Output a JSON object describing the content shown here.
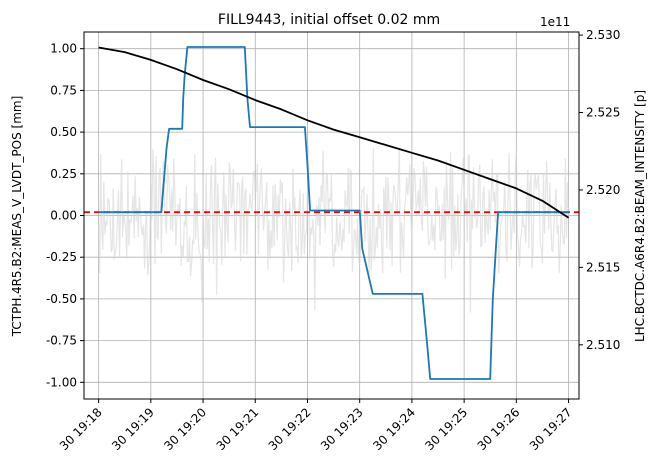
{
  "chart_data": {
    "type": "line",
    "title": "FILL9443, initial offset 0.02 mm",
    "ylabel_left": "TCTPH.4R5.B2:MEAS_V_LVDT_POS [mm]",
    "ylabel_right": "LHC.BCTDC.A6R4.B2:BEAM_INTENSITY [p]",
    "right_axis_offset_label": "1e11",
    "x_ticks": [
      "30 19:18",
      "30 19:19",
      "30 19:20",
      "30 19:21",
      "30 19:22",
      "30 19:23",
      "30 19:24",
      "30 19:25",
      "30 19:26",
      "30 19:27"
    ],
    "xlim": [
      -0.28,
      9.2
    ],
    "ylim_left": [
      -1.1,
      1.1
    ],
    "ylim_right": [
      2.5065,
      2.5302
    ],
    "yticks_left": [
      "-1.00",
      "-0.75",
      "-0.50",
      "-0.25",
      "0.00",
      "0.25",
      "0.50",
      "0.75",
      "1.00"
    ],
    "yticks_left_values": [
      -1.0,
      -0.75,
      -0.5,
      -0.25,
      0.0,
      0.25,
      0.5,
      0.75,
      1.0
    ],
    "yticks_right": [
      "2.510",
      "2.515",
      "2.520",
      "2.525",
      "2.530"
    ],
    "yticks_right_values": [
      2.51,
      2.515,
      2.52,
      2.525,
      2.53
    ],
    "grid": true,
    "reference_line": {
      "y": 0.02,
      "color": "#ff0000",
      "style": "dashed"
    },
    "series": [
      {
        "axis": "left",
        "color": "#1f77b4",
        "x": [
          0.0,
          1.2,
          1.3,
          1.35,
          1.6,
          1.62,
          1.65,
          1.7,
          2.8,
          2.85,
          2.9,
          3.95,
          4.0,
          4.05,
          5.0,
          5.05,
          5.25,
          6.2,
          6.3,
          6.35,
          7.5,
          7.55,
          7.65,
          9.0
        ],
        "y": [
          0.02,
          0.02,
          0.4,
          0.52,
          0.52,
          0.7,
          0.85,
          1.01,
          1.01,
          0.7,
          0.53,
          0.53,
          0.3,
          0.03,
          0.03,
          -0.2,
          -0.47,
          -0.47,
          -0.8,
          -0.98,
          -0.98,
          -0.5,
          0.02,
          0.02
        ]
      },
      {
        "axis": "right",
        "color": "#000000",
        "x": [
          0.0,
          0.5,
          1.0,
          1.5,
          2.0,
          2.5,
          3.0,
          3.5,
          4.0,
          4.5,
          5.0,
          5.5,
          6.0,
          6.5,
          7.0,
          7.5,
          8.0,
          8.5,
          9.0
        ],
        "y": [
          2.5292,
          2.5289,
          2.5284,
          2.5278,
          2.5271,
          2.5265,
          2.5258,
          2.5252,
          2.5245,
          2.5239,
          2.5234,
          2.5229,
          2.5224,
          2.5219,
          2.5213,
          2.5207,
          2.5201,
          2.5193,
          2.5182
        ]
      },
      {
        "axis": "left",
        "color": "#d3d3d3",
        "style": "noise",
        "amplitude": 0.3,
        "count": 450
      }
    ]
  }
}
